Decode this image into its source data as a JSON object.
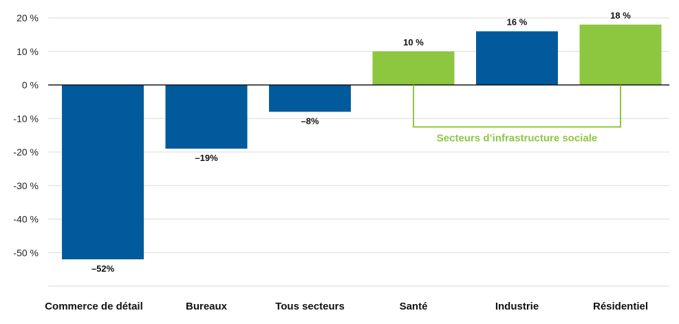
{
  "colors": {
    "blue": "#005a9c",
    "green": "#8dc63f",
    "grid": "#d9d9d9",
    "zero_line": "#111111"
  },
  "chart_data": {
    "type": "bar",
    "categories": [
      "Commerce de détail",
      "Bureaux",
      "Tous secteurs",
      "Santé",
      "Industrie",
      "Résidentiel"
    ],
    "values": [
      -52,
      -19,
      -8,
      10,
      16,
      18
    ],
    "value_labels": [
      "–52%",
      "–19%",
      "–8%",
      "10 %",
      "16 %",
      "18 %"
    ],
    "bar_colors": [
      "blue",
      "blue",
      "blue",
      "green",
      "blue",
      "green"
    ],
    "yticks": [
      20,
      10,
      0,
      -10,
      -20,
      -30,
      -40,
      -50
    ],
    "ytick_labels": [
      "20 %",
      "10 %",
      "0 %",
      "-10 %",
      "-20 %",
      "-30 %",
      "-40 %",
      "-50 %"
    ],
    "ylim": [
      -60,
      20
    ],
    "grid": true,
    "title": "",
    "xlabel": "",
    "ylabel": "",
    "annotation": {
      "text": "Secteurs d’infrastructure sociale",
      "color": "green",
      "from_category": "Santé",
      "to_category": "Résidentiel"
    }
  }
}
